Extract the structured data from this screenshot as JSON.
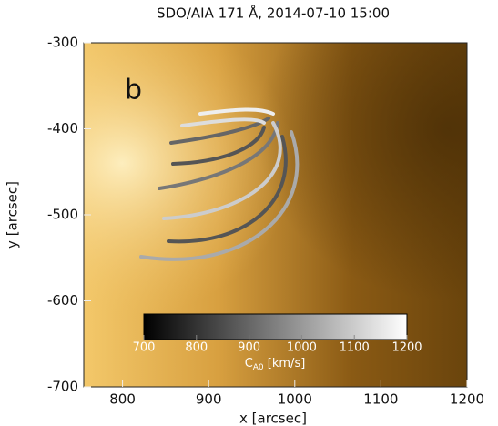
{
  "chart_data": {
    "type": "image",
    "title": "SDO/AIA 171 Å, 2014-07-10 15:00",
    "xlabel": "x [arcsec]",
    "ylabel": "y [arcsec]",
    "annotation": "b",
    "xlim": [
      755,
      1200
    ],
    "xticks": [
      800,
      900,
      1000,
      1100,
      1200
    ],
    "ylim": [
      -700,
      -300
    ],
    "yticks": [
      -700,
      -600,
      -500,
      -400,
      -300
    ],
    "colorbar": {
      "symbol": "C",
      "subscript": "A0",
      "unit": "[km/s]",
      "clim": [
        700,
        1200
      ],
      "ticks": [
        700,
        800,
        900,
        1000,
        1100,
        1200
      ]
    }
  }
}
